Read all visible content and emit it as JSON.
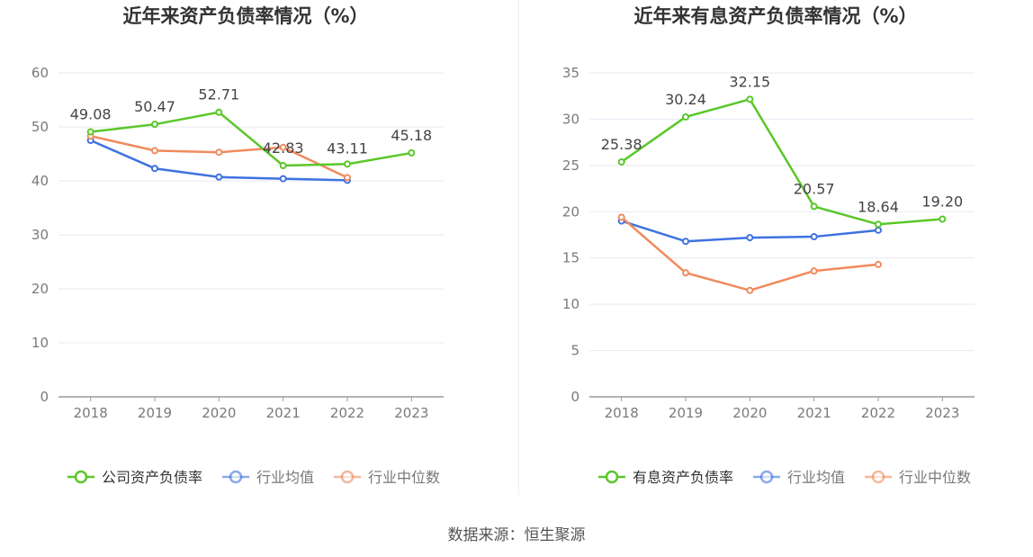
{
  "colors": {
    "company": "#5ac72a",
    "avg": "#3f72e0",
    "median": "#f08a5d",
    "grid": "#e6e9f2",
    "axis": "#9a9a9a",
    "tick": "#7a7a7a",
    "title": "#333333"
  },
  "source_text": "数据来源：恒生聚源",
  "chart_data": [
    {
      "type": "line",
      "title": "近年来资产负债率情况（%）",
      "categories": [
        "2018",
        "2019",
        "2020",
        "2021",
        "2022",
        "2023"
      ],
      "ylim": [
        0,
        60
      ],
      "yticks": [
        0,
        10,
        20,
        30,
        40,
        50,
        60
      ],
      "grid": true,
      "legend_position": "bottom",
      "series": [
        {
          "name": "公司资产负债率",
          "color": "#5ac72a",
          "labeled": true,
          "values": [
            49.08,
            50.47,
            52.71,
            42.83,
            43.11,
            45.18
          ],
          "labels": [
            "49.08",
            "50.47",
            "52.71",
            "42.83",
            "43.11",
            "45.18"
          ]
        },
        {
          "name": "行业均值",
          "color": "#3f72e0",
          "labeled": false,
          "values": [
            47.5,
            42.3,
            40.7,
            40.4,
            40.1,
            null
          ]
        },
        {
          "name": "行业中位数",
          "color": "#f08a5d",
          "labeled": false,
          "values": [
            48.3,
            45.6,
            45.3,
            46.2,
            40.6,
            null
          ]
        }
      ]
    },
    {
      "type": "line",
      "title": "近年来有息资产负债率情况（%）",
      "categories": [
        "2018",
        "2019",
        "2020",
        "2021",
        "2022",
        "2023"
      ],
      "ylim": [
        0,
        35
      ],
      "yticks": [
        0,
        5,
        10,
        15,
        20,
        25,
        30,
        35
      ],
      "grid": true,
      "legend_position": "bottom",
      "series": [
        {
          "name": "有息资产负债率",
          "color": "#5ac72a",
          "labeled": true,
          "values": [
            25.38,
            30.24,
            32.15,
            20.57,
            18.64,
            19.2
          ],
          "labels": [
            "25.38",
            "30.24",
            "32.15",
            "20.57",
            "18.64",
            "19.20"
          ]
        },
        {
          "name": "行业均值",
          "color": "#3f72e0",
          "labeled": false,
          "values": [
            19.0,
            16.8,
            17.2,
            17.3,
            18.0,
            null
          ]
        },
        {
          "name": "行业中位数",
          "color": "#f08a5d",
          "labeled": false,
          "values": [
            19.4,
            13.4,
            11.5,
            13.6,
            14.3,
            null
          ]
        }
      ]
    }
  ]
}
